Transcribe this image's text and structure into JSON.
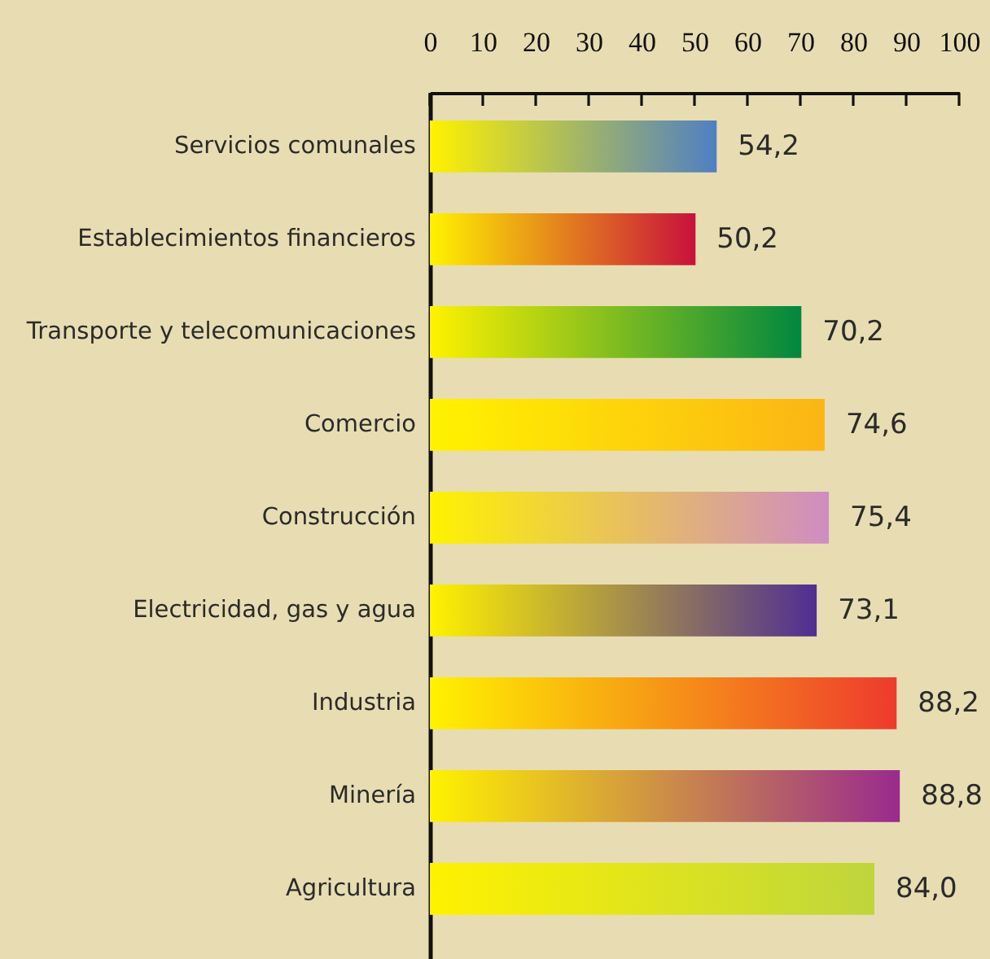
{
  "chart_data": {
    "type": "bar",
    "orientation": "horizontal",
    "categories": [
      "Servicios comunales",
      "Establecimientos financieros",
      "Transporte y telecomunicaciones",
      "Comercio",
      "Construcción",
      "Electricidad, gas y agua",
      "Industria",
      "Minería",
      "Agricultura"
    ],
    "values": [
      54.2,
      50.2,
      70.2,
      74.6,
      75.4,
      73.1,
      88.2,
      88.8,
      84.0
    ],
    "value_labels": [
      "54,2",
      "50,2",
      "70,2",
      "74,6",
      "75,4",
      "73,1",
      "88,2",
      "88,8",
      "84,0"
    ],
    "colors": [
      "#4f7fc4",
      "#c8103c",
      "#00873f",
      "#fbb515",
      "#cf8cc2",
      "#4f2e93",
      "#ee3a2e",
      "#9a2a8e",
      "#bed53c"
    ],
    "xlim": [
      0,
      100
    ],
    "xticks": [
      0,
      10,
      20,
      30,
      40,
      50,
      60,
      70,
      80,
      90,
      100
    ]
  }
}
